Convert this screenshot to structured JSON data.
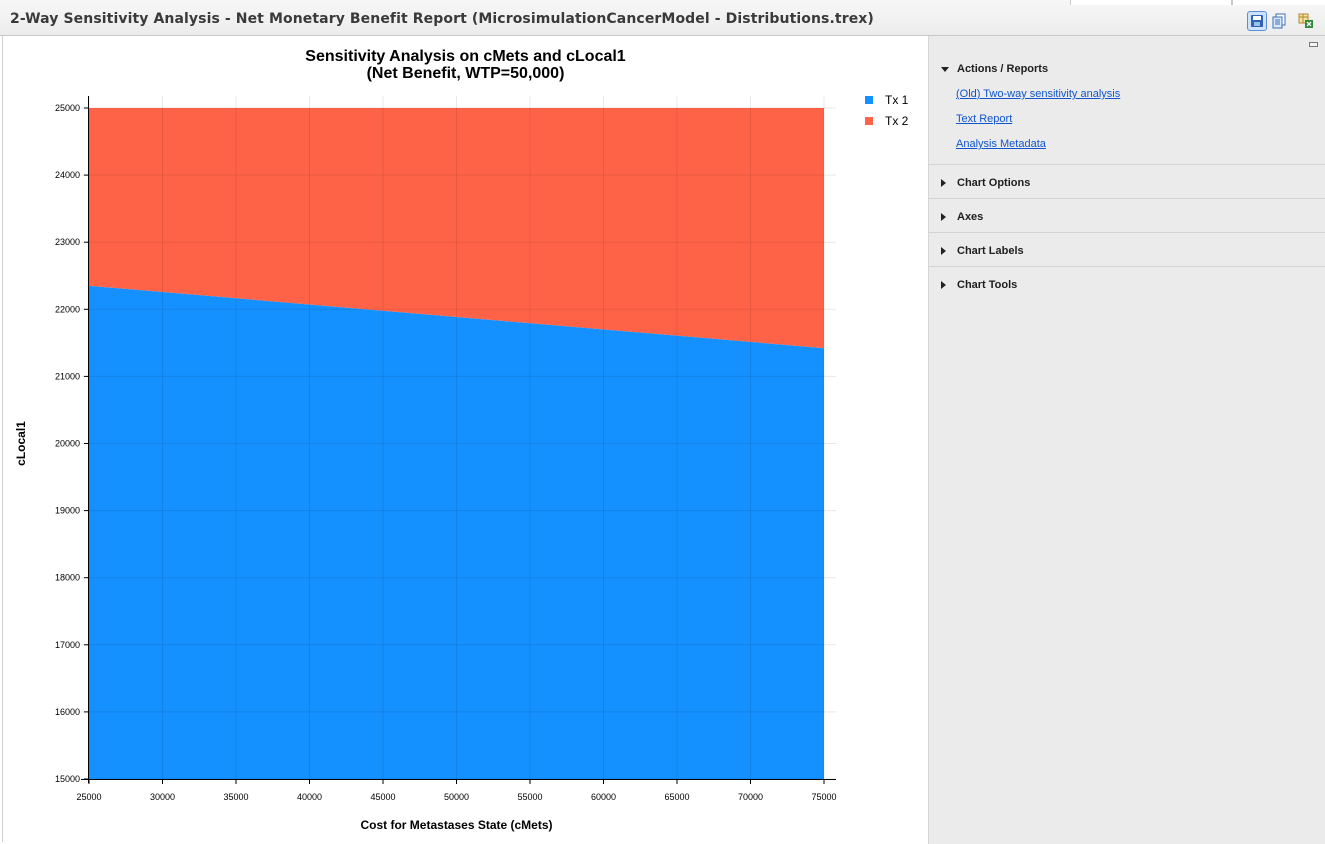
{
  "window": {
    "title": "2-Way Sensitivity Analysis - Net Monetary Benefit Report (MicrosimulationCancerModel - Distributions.trex)"
  },
  "toolbar": {
    "icons": [
      "save-icon",
      "copy-icon",
      "export-excel-icon"
    ]
  },
  "chart_data": {
    "type": "area",
    "title": "Sensitivity Analysis on cMets and cLocal1",
    "subtitle": "(Net Benefit, WTP=50,000)",
    "xlabel": "Cost for Metastases State (cMets)",
    "ylabel": "cLocal1",
    "xlim": [
      25000,
      75000
    ],
    "ylim": [
      15000,
      25000
    ],
    "x_ticks": [
      "25000",
      "30000",
      "35000",
      "40000",
      "45000",
      "50000",
      "55000",
      "60000",
      "65000",
      "70000",
      "75000"
    ],
    "y_ticks": [
      "15000",
      "16000",
      "17000",
      "18000",
      "19000",
      "20000",
      "21000",
      "22000",
      "23000",
      "24000",
      "25000"
    ],
    "grid": true,
    "legend_position": "top-right",
    "series": [
      {
        "name": "Tx 1",
        "color": "#1590ff",
        "region": "below boundary"
      },
      {
        "name": "Tx 2",
        "color": "#ff6347",
        "region": "above boundary"
      }
    ],
    "boundary": {
      "x": [
        25000,
        75000
      ],
      "y": [
        22350,
        21420
      ]
    }
  },
  "side_panel": {
    "sections": [
      {
        "label": "Actions / Reports",
        "expanded": true,
        "links": [
          "(Old) Two-way sensitivity analysis",
          "Text Report",
          "Analysis Metadata"
        ]
      },
      {
        "label": "Chart Options",
        "expanded": false
      },
      {
        "label": "Axes",
        "expanded": false
      },
      {
        "label": "Chart Labels",
        "expanded": false
      },
      {
        "label": "Chart Tools",
        "expanded": false
      }
    ]
  }
}
